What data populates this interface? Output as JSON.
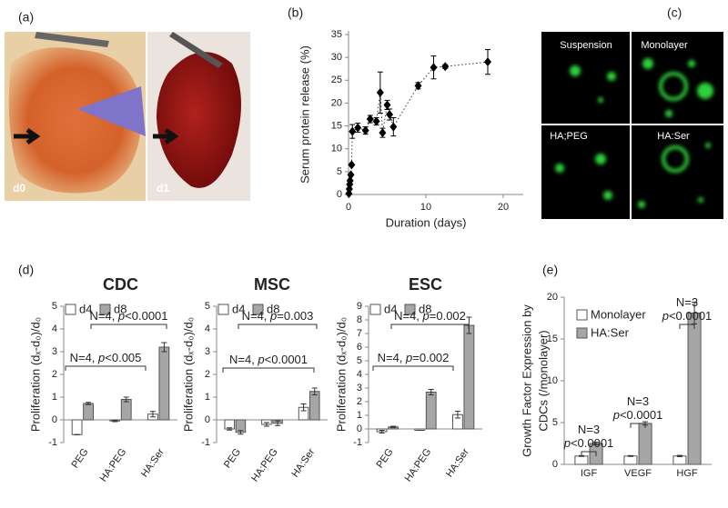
{
  "panel_labels": [
    "(a)",
    "(b)",
    "(c)",
    "(d)",
    "(e)"
  ],
  "photos": [
    "d0",
    "d1"
  ],
  "micrographs": [
    "Suspension",
    "Monolayer",
    "HA;PEG",
    "HA:Ser"
  ],
  "chart_data": [
    {
      "type": "scatter",
      "xlabel": "Duration (days)",
      "ylabel": "Serum protein release (%)",
      "x": [
        0.05,
        0.1,
        0.15,
        0.2,
        0.3,
        0.4,
        0.5,
        1.2,
        2.2,
        2.8,
        3.6,
        4.1,
        4.4,
        5.0,
        5.3,
        5.8,
        9.0,
        11.0,
        12.5,
        18.0
      ],
      "values": [
        0.2,
        1.2,
        2.2,
        3.0,
        4.3,
        6.5,
        13.8,
        14.6,
        14.0,
        16.5,
        16.0,
        22.3,
        13.5,
        19.6,
        17.5,
        14.8,
        23.8,
        27.8,
        28.0,
        29.0
      ],
      "errors": [
        0,
        0,
        0,
        0,
        0,
        0,
        1.5,
        1,
        0.8,
        0.8,
        0.8,
        4.5,
        1,
        1,
        1.2,
        2,
        0.7,
        2.5,
        0.4,
        2.7
      ],
      "color": "#000000",
      "trendline": true,
      "xlim": [
        0,
        20
      ],
      "xticks": [
        0,
        10,
        20
      ],
      "ylim": [
        0,
        35
      ],
      "yticks": [
        0,
        5,
        10,
        15,
        20,
        25,
        30,
        35
      ]
    },
    {
      "type": "bar",
      "title": "CDC",
      "ylabel": "Proliferation (dₓ-d₀)/d₀",
      "categories": [
        "PEG",
        "HA:PEG",
        "HA:Ser"
      ],
      "series": [
        {
          "name": "d4",
          "color": "#ffffff",
          "values": [
            -0.65,
            -0.05,
            0.25
          ],
          "errors": [
            0,
            0.03,
            0.12
          ]
        },
        {
          "name": "d8",
          "color": "#a6a6a6",
          "values": [
            0.72,
            0.9,
            3.2
          ],
          "errors": [
            0.05,
            0.1,
            0.2
          ]
        }
      ],
      "ylim": [
        -1,
        5
      ],
      "yticks": [
        -1,
        0,
        1,
        2,
        3,
        4,
        5
      ],
      "legend": "upper left",
      "annotations": [
        {
          "lines": [
            [
              "N=4, ",
              "p",
              "<0.005"
            ]
          ]
        },
        {
          "lines": [
            [
              "N=4, ",
              "p",
              "<0.0001"
            ]
          ]
        }
      ]
    },
    {
      "type": "bar",
      "title": "MSC",
      "ylabel": "Proliferation (dₓ-d₀)/d₀",
      "categories": [
        "PEG",
        "HA:PEG",
        "HA:Ser"
      ],
      "series": [
        {
          "name": "d4",
          "color": "#ffffff",
          "values": [
            -0.4,
            -0.2,
            0.55
          ],
          "errors": [
            0.05,
            0.08,
            0.15
          ]
        },
        {
          "name": "d8",
          "color": "#a6a6a6",
          "values": [
            -0.55,
            -0.15,
            1.25
          ],
          "errors": [
            0.08,
            0.1,
            0.15
          ]
        }
      ],
      "ylim": [
        -1,
        5
      ],
      "yticks": [
        -1,
        0,
        1,
        2,
        3,
        4,
        5
      ],
      "legend": "upper left",
      "annotations": [
        {
          "lines": [
            [
              "N=4, ",
              "p",
              "<0.0001"
            ]
          ]
        },
        {
          "lines": [
            [
              "N=4, ",
              "p",
              "=0.003"
            ]
          ]
        }
      ]
    },
    {
      "type": "bar",
      "title": "ESC",
      "ylabel": "Proliferation (dₓ-d₀)/d₀",
      "categories": [
        "PEG",
        "HA:PEG",
        "HA:Ser"
      ],
      "series": [
        {
          "name": "d4",
          "color": "#ffffff",
          "values": [
            -0.2,
            -0.1,
            1.05
          ],
          "errors": [
            0.1,
            0,
            0.25
          ]
        },
        {
          "name": "d8",
          "color": "#a6a6a6",
          "values": [
            0.15,
            2.7,
            7.6
          ],
          "errors": [
            0.05,
            0.2,
            0.6
          ]
        }
      ],
      "ylim": [
        -1,
        9
      ],
      "yticks": [
        -1,
        0,
        1,
        2,
        3,
        4,
        5,
        6,
        7,
        8,
        9
      ],
      "legend": "upper left",
      "annotations": [
        {
          "lines": [
            [
              "N=4, ",
              "p",
              "=0.002"
            ]
          ]
        },
        {
          "lines": [
            [
              "N=4, ",
              "p",
              "=0.002"
            ]
          ]
        }
      ]
    },
    {
      "type": "bar",
      "ylabel": [
        "Growth Factor Expression by",
        "CDCs (/monolayer)"
      ],
      "categories": [
        "IGF",
        "VEGF",
        "HGF"
      ],
      "series": [
        {
          "name": "Monolayer",
          "color": "#ffffff",
          "values": [
            1,
            1,
            1
          ],
          "errors": [
            0.05,
            0.05,
            0.08
          ]
        },
        {
          "name": "HA:Ser",
          "color": "#a6a6a6",
          "values": [
            2.5,
            4.9,
            18.1
          ],
          "errors": [
            0.15,
            0.2,
            1.3
          ]
        }
      ],
      "ylim": [
        0,
        20
      ],
      "yticks": [
        0,
        5,
        10,
        15,
        20
      ],
      "legend": "upper left",
      "annotations": [
        {
          "lines": [
            [
              "N=3"
            ],
            [
              "p",
              "<0.0001"
            ]
          ]
        },
        {
          "lines": [
            [
              "N=3"
            ],
            [
              "p",
              "<0.0001"
            ]
          ]
        },
        {
          "lines": [
            [
              "N=3"
            ],
            [
              "p",
              "<0.0001"
            ]
          ]
        }
      ]
    }
  ]
}
